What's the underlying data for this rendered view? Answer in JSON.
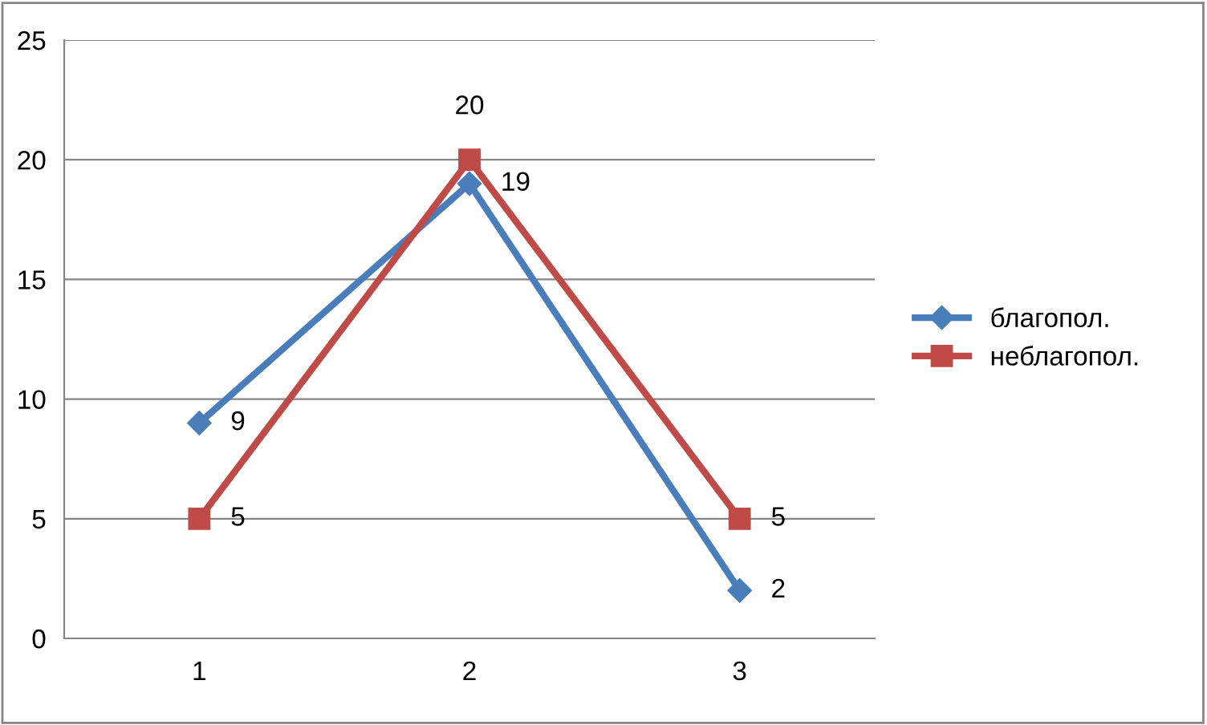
{
  "chart_data": {
    "type": "line",
    "categories": [
      "1",
      "2",
      "3"
    ],
    "series": [
      {
        "name": "благопол.",
        "color": "#4a7ebb",
        "marker": "diamond",
        "values": [
          9,
          19,
          2
        ]
      },
      {
        "name": "неблагопол.",
        "color": "#be4b48",
        "marker": "square",
        "values": [
          5,
          20,
          5
        ]
      }
    ],
    "ylim": [
      0,
      25
    ],
    "yticks": [
      0,
      5,
      10,
      15,
      20,
      25
    ],
    "grid": "y",
    "legend": "right",
    "data_labels": true,
    "line_style": "solid"
  }
}
